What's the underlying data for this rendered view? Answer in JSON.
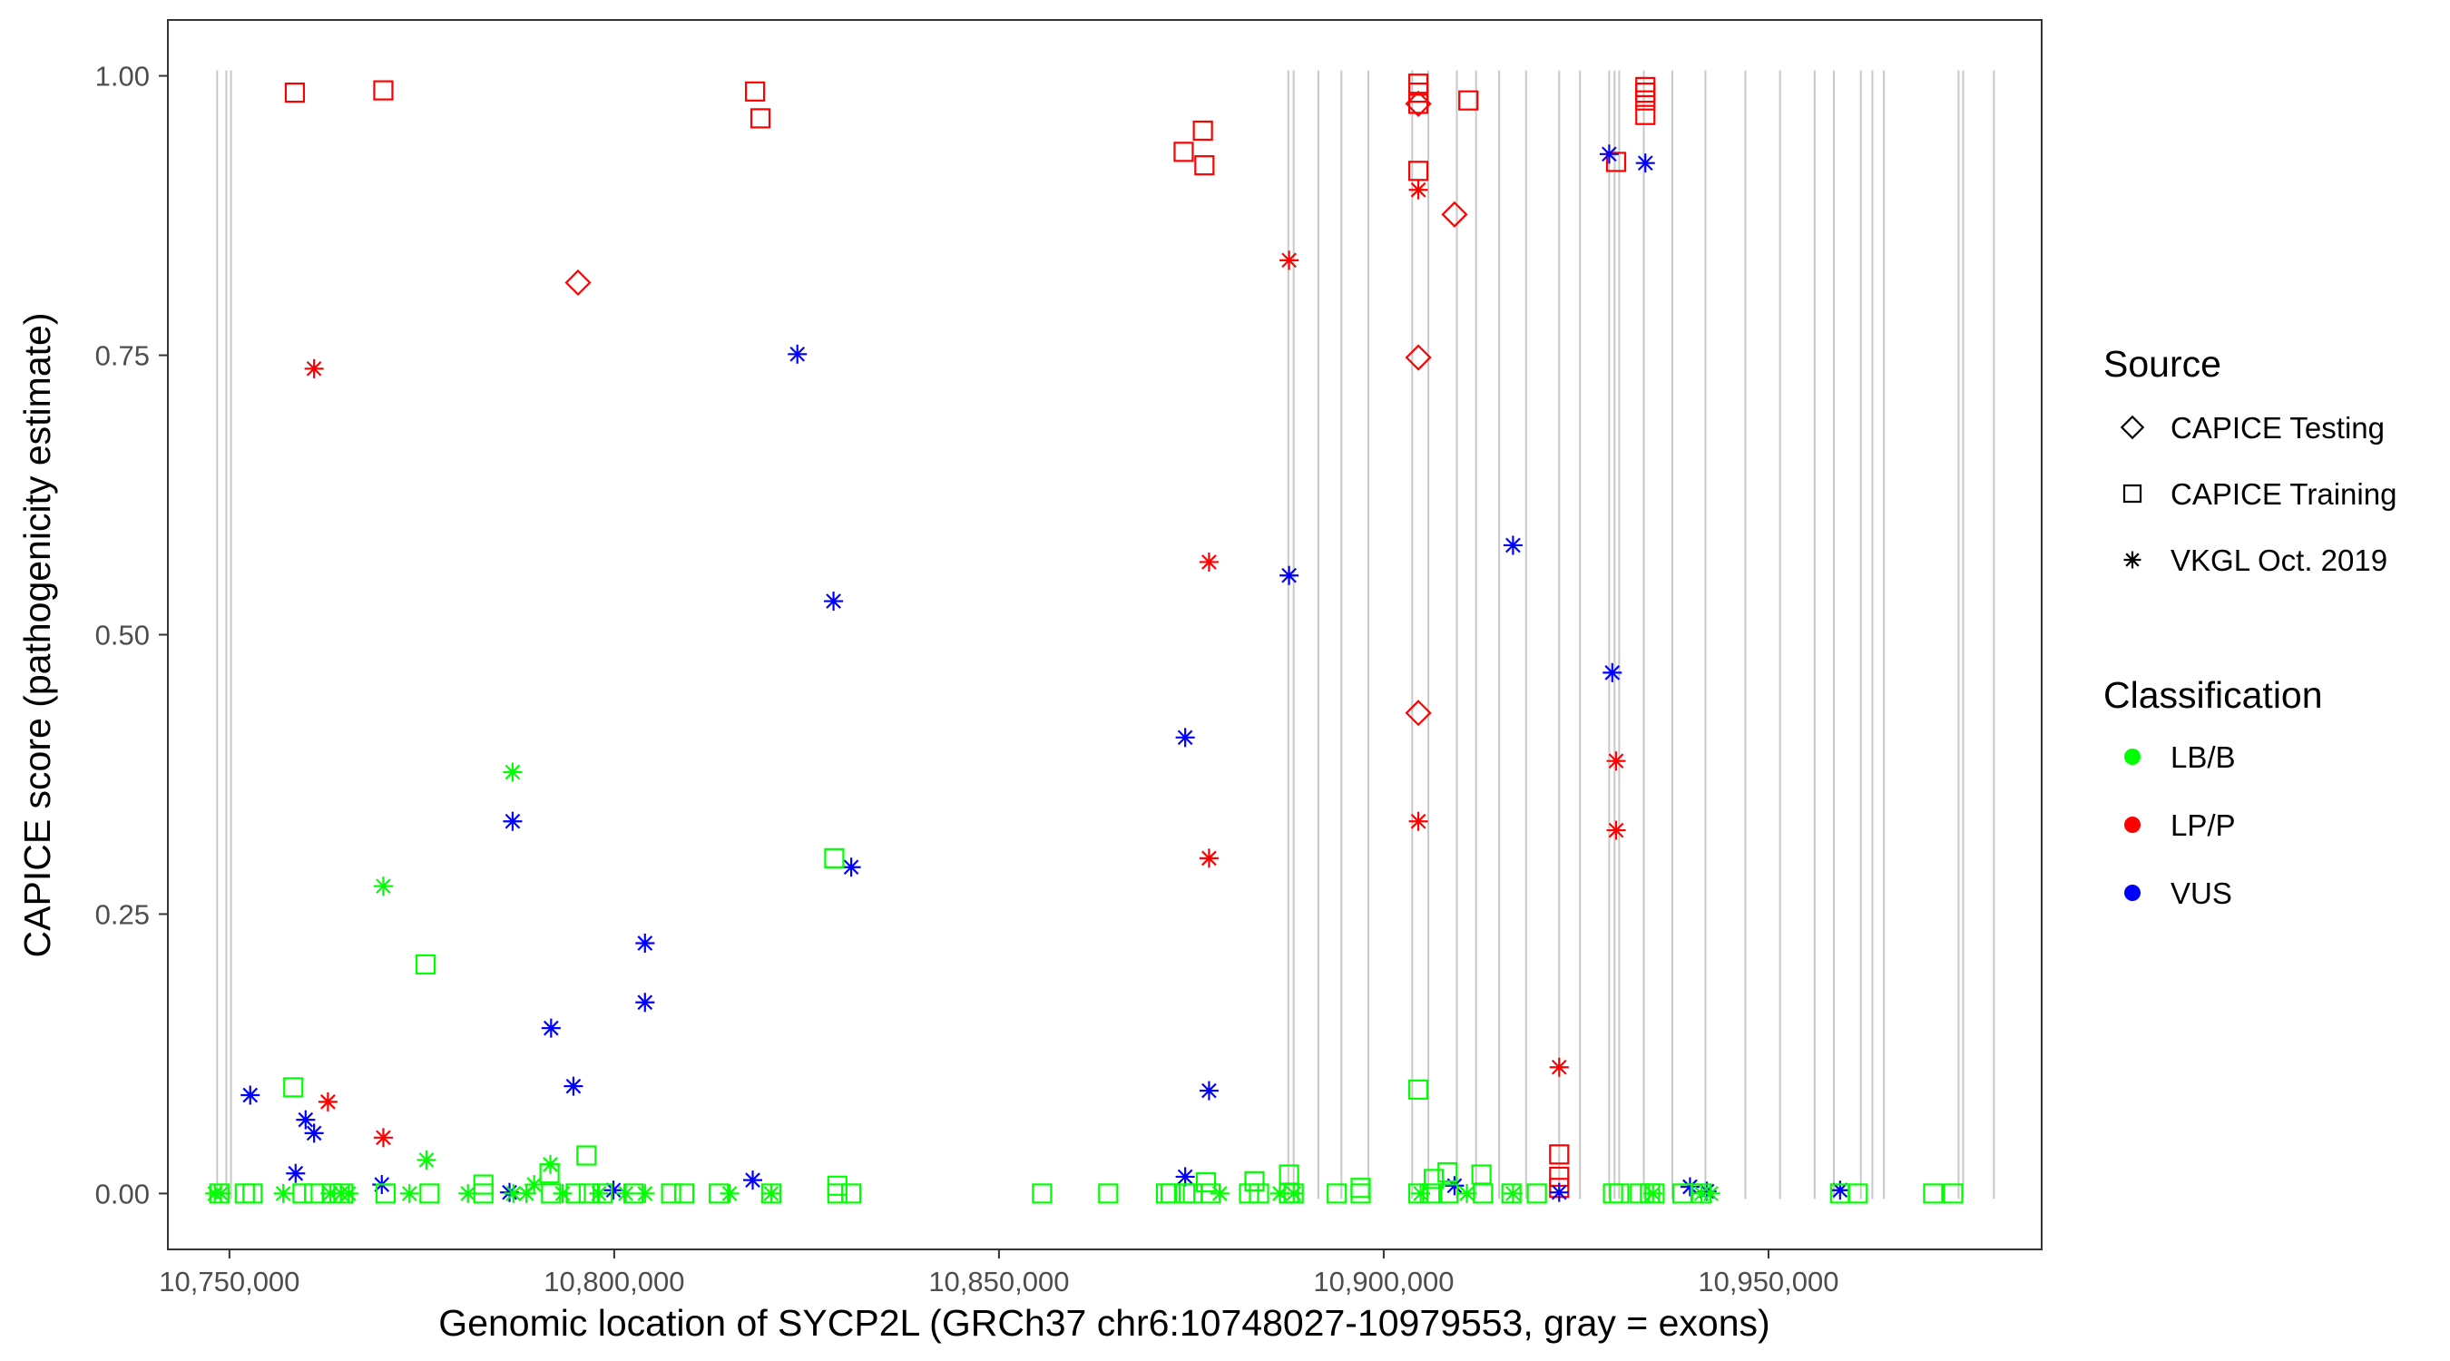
{
  "chart_data": {
    "type": "scatter",
    "title": "",
    "xlabel": "Genomic location of SYCP2L (GRCh37 chr6:10748027-10979553, gray = exons)",
    "ylabel": "CAPICE score (pathogenicity estimate)",
    "xlim": [
      10742000,
      10985500
    ],
    "ylim": [
      -0.05,
      1.05
    ],
    "x_ticks": [
      10750000,
      10800000,
      10850000,
      10900000,
      10950000
    ],
    "x_tick_labels": [
      "10,750,000",
      "10,800,000",
      "10,850,000",
      "10,900,000",
      "10,950,000"
    ],
    "y_ticks": [
      0,
      0.25,
      0.5,
      0.75,
      1
    ],
    "y_tick_labels": [
      "0.00",
      "0.25",
      "0.50",
      "0.75",
      "1.00"
    ],
    "grid": false,
    "exons": [
      10748400,
      10749600,
      10750200,
      10887600,
      10888300,
      10891500,
      10894500,
      10898000,
      10903700,
      10905800,
      10909500,
      10912000,
      10915000,
      10918500,
      10922800,
      10925500,
      10929300,
      10930000,
      10930600,
      10933800,
      10937500,
      10941800,
      10947000,
      10951500,
      10956000,
      10958500,
      10962000,
      10963500,
      10965000,
      10974700,
      10975300,
      10979300
    ],
    "legend": {
      "position": "right",
      "source_title": "Source",
      "source_items": [
        {
          "label": "CAPICE Testing",
          "shape": "diamond"
        },
        {
          "label": "CAPICE Training",
          "shape": "square"
        },
        {
          "label": "VKGL Oct. 2019",
          "shape": "asterisk"
        }
      ],
      "class_title": "Classification",
      "class_items": [
        {
          "label": "LB/B",
          "color": "#00ff00"
        },
        {
          "label": "LP/P",
          "color": "#ff0000"
        },
        {
          "label": "VUS",
          "color": "#0000ff"
        }
      ]
    },
    "series": [
      {
        "source": "CAPICE Training",
        "classification": "LP/P",
        "points": [
          [
            10758500,
            0.985
          ],
          [
            10770000,
            0.987
          ],
          [
            10818300,
            0.986
          ],
          [
            10819000,
            0.962
          ],
          [
            10874000,
            0.932
          ],
          [
            10876500,
            0.951
          ],
          [
            10876700,
            0.92
          ],
          [
            10904500,
            0.993
          ],
          [
            10904500,
            0.985
          ],
          [
            10904500,
            0.975
          ],
          [
            10904500,
            0.915
          ],
          [
            10911000,
            0.978
          ],
          [
            10930200,
            0.923
          ],
          [
            10934000,
            0.99
          ],
          [
            10934000,
            0.985
          ],
          [
            10934000,
            0.978
          ],
          [
            10934000,
            0.965
          ],
          [
            10922800,
            0.035
          ],
          [
            10922800,
            0.015
          ],
          [
            10922800,
            0.005
          ]
        ]
      },
      {
        "source": "CAPICE Testing",
        "classification": "LP/P",
        "points": [
          [
            10795300,
            0.815
          ],
          [
            10904500,
            0.975
          ],
          [
            10909200,
            0.876
          ],
          [
            10904500,
            0.748
          ],
          [
            10904500,
            0.43
          ]
        ]
      },
      {
        "source": "VKGL Oct. 2019",
        "classification": "LP/P",
        "points": [
          [
            10761000,
            0.738
          ],
          [
            10762800,
            0.082
          ],
          [
            10770000,
            0.05
          ],
          [
            10877300,
            0.565
          ],
          [
            10877300,
            0.3
          ],
          [
            10887700,
            0.835
          ],
          [
            10904500,
            0.898
          ],
          [
            10904500,
            0.333
          ],
          [
            10922800,
            0.113
          ],
          [
            10930200,
            0.387
          ],
          [
            10930200,
            0.325
          ]
        ]
      },
      {
        "source": "VKGL Oct. 2019",
        "classification": "VUS",
        "points": [
          [
            10752700,
            0.088
          ],
          [
            10758600,
            0.018
          ],
          [
            10759900,
            0.066
          ],
          [
            10761000,
            0.054
          ],
          [
            10769800,
            0.008
          ],
          [
            10786800,
            0.333
          ],
          [
            10791800,
            0.148
          ],
          [
            10794700,
            0.096
          ],
          [
            10799900,
            0.003
          ],
          [
            10804000,
            0.224
          ],
          [
            10804000,
            0.171
          ],
          [
            10818000,
            0.012
          ],
          [
            10823800,
            0.751
          ],
          [
            10828500,
            0.53
          ],
          [
            10830800,
            0.292
          ],
          [
            10874200,
            0.408
          ],
          [
            10874200,
            0.015
          ],
          [
            10877300,
            0.092
          ],
          [
            10887700,
            0.553
          ],
          [
            10909200,
            0.007
          ],
          [
            10916800,
            0.58
          ],
          [
            10922800,
            0.001
          ],
          [
            10929300,
            0.93
          ],
          [
            10929700,
            0.466
          ],
          [
            10934000,
            0.922
          ],
          [
            10939800,
            0.006
          ],
          [
            10942000,
            0.002
          ],
          [
            10959300,
            0.003
          ],
          [
            10786400,
            0.001
          ]
        ]
      },
      {
        "source": "CAPICE Training",
        "classification": "LB/B",
        "points": [
          [
            10758300,
            0.095
          ],
          [
            10775500,
            0.205
          ],
          [
            10828600,
            0.3
          ],
          [
            10904500,
            0.093
          ],
          [
            10796400,
            0.034
          ],
          [
            10783000,
            0.008
          ],
          [
            10791600,
            0.018
          ],
          [
            10829000,
            0.007
          ],
          [
            10876900,
            0.01
          ],
          [
            10883200,
            0.011
          ],
          [
            10887700,
            0.017
          ],
          [
            10897000,
            0.005
          ],
          [
            10906500,
            0.013
          ],
          [
            10908300,
            0.019
          ],
          [
            10912700,
            0.017
          ],
          [
            10748700,
            0
          ],
          [
            10752000,
            0
          ],
          [
            10753000,
            0
          ],
          [
            10759500,
            0
          ],
          [
            10761000,
            0
          ],
          [
            10763300,
            0
          ],
          [
            10764800,
            0
          ],
          [
            10770300,
            0
          ],
          [
            10776000,
            0
          ],
          [
            10783000,
            0
          ],
          [
            10791800,
            0
          ],
          [
            10795000,
            0
          ],
          [
            10796700,
            0
          ],
          [
            10798500,
            0
          ],
          [
            10802500,
            0
          ],
          [
            10807400,
            0
          ],
          [
            10809100,
            0
          ],
          [
            10813600,
            0
          ],
          [
            10820400,
            0
          ],
          [
            10829000,
            0
          ],
          [
            10830800,
            0
          ],
          [
            10855600,
            0
          ],
          [
            10864200,
            0
          ],
          [
            10871700,
            0
          ],
          [
            10872300,
            0
          ],
          [
            10874200,
            0
          ],
          [
            10875200,
            0
          ],
          [
            10877500,
            0
          ],
          [
            10882500,
            0
          ],
          [
            10883800,
            0
          ],
          [
            10887700,
            0
          ],
          [
            10888300,
            0
          ],
          [
            10893900,
            0
          ],
          [
            10897000,
            0
          ],
          [
            10904500,
            0
          ],
          [
            10906300,
            0
          ],
          [
            10908400,
            0
          ],
          [
            10912900,
            0
          ],
          [
            10916600,
            0
          ],
          [
            10919900,
            0
          ],
          [
            10929800,
            0
          ],
          [
            10930600,
            0
          ],
          [
            10933300,
            0
          ],
          [
            10934600,
            0
          ],
          [
            10935200,
            0
          ],
          [
            10938800,
            0
          ],
          [
            10941300,
            0
          ],
          [
            10959300,
            0
          ],
          [
            10961600,
            0
          ],
          [
            10971400,
            0
          ],
          [
            10974000,
            0
          ]
        ]
      },
      {
        "source": "VKGL Oct. 2019",
        "classification": "LB/B",
        "points": [
          [
            10786800,
            0.377
          ],
          [
            10770000,
            0.275
          ],
          [
            10775600,
            0.03
          ],
          [
            10791700,
            0.026
          ],
          [
            10789600,
            0.008
          ],
          [
            10748100,
            0
          ],
          [
            10748900,
            0
          ],
          [
            10757000,
            0
          ],
          [
            10763100,
            0
          ],
          [
            10764500,
            0
          ],
          [
            10765500,
            0
          ],
          [
            10773400,
            0
          ],
          [
            10781000,
            0
          ],
          [
            10786900,
            0
          ],
          [
            10788600,
            0
          ],
          [
            10793300,
            0
          ],
          [
            10798000,
            0
          ],
          [
            10801500,
            0
          ],
          [
            10804000,
            0
          ],
          [
            10815000,
            0
          ],
          [
            10820400,
            0
          ],
          [
            10878700,
            0
          ],
          [
            10886500,
            0
          ],
          [
            10888300,
            0
          ],
          [
            10904800,
            0
          ],
          [
            10910800,
            0
          ],
          [
            10916800,
            0
          ],
          [
            10935000,
            0
          ],
          [
            10941300,
            0
          ],
          [
            10942500,
            0
          ]
        ]
      }
    ]
  }
}
